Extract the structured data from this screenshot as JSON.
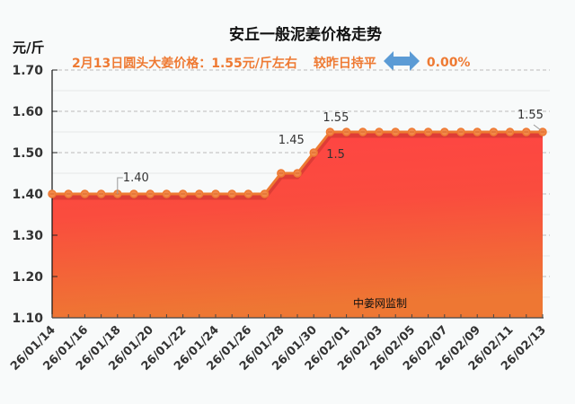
{
  "header": {
    "title": "安丘一般泥姜价格走势",
    "unit": "元/斤",
    "subtitle_price": "2月13日圆头大姜价格：1.55元/斤左右",
    "subtitle_compare": "较昨日持平",
    "subtitle_change": "0.00%",
    "arrow_icon": "left-right-arrow-icon"
  },
  "watermark": "中姜网监制",
  "colors": {
    "accent_text": "#EE7A33",
    "line": "#EE7A33",
    "area_top": "#FF4444",
    "area_bottom": "#EE7733",
    "arrow": "#5B9BD5"
  },
  "chart_data": {
    "type": "area",
    "title": "安丘一般泥姜价格走势",
    "ylabel": "元/斤",
    "xlabel": "",
    "ylim": [
      1.1,
      1.7
    ],
    "yticks": [
      "1.70",
      "1.60",
      "1.50",
      "1.40",
      "1.30",
      "1.20",
      "1.10"
    ],
    "grid": true,
    "legend": "none",
    "x": [
      "26/01/14",
      "26/01/15",
      "26/01/16",
      "26/01/17",
      "26/01/18",
      "26/01/19",
      "26/01/20",
      "26/01/21",
      "26/01/22",
      "26/01/23",
      "26/01/24",
      "26/01/25",
      "26/01/26",
      "26/01/27",
      "26/01/28",
      "26/01/29",
      "26/01/30",
      "26/01/31",
      "26/02/01",
      "26/02/02",
      "26/02/03",
      "26/02/04",
      "26/02/05",
      "26/02/06",
      "26/02/07",
      "26/02/08",
      "26/02/09",
      "26/02/10",
      "26/02/11",
      "26/02/12",
      "26/02/13"
    ],
    "xtick_labels": [
      "26/01/14",
      "26/01/16",
      "26/01/18",
      "26/01/20",
      "26/01/22",
      "26/01/24",
      "26/01/26",
      "26/01/28",
      "26/01/30",
      "26/02/01",
      "26/02/03",
      "26/02/05",
      "26/02/07",
      "26/02/09",
      "26/02/11",
      "26/02/13"
    ],
    "values": [
      1.4,
      1.4,
      1.4,
      1.4,
      1.4,
      1.4,
      1.4,
      1.4,
      1.4,
      1.4,
      1.4,
      1.4,
      1.4,
      1.4,
      1.45,
      1.45,
      1.5,
      1.55,
      1.55,
      1.55,
      1.55,
      1.55,
      1.55,
      1.55,
      1.55,
      1.55,
      1.55,
      1.55,
      1.55,
      1.55,
      1.55
    ],
    "annotations": [
      {
        "index": 4,
        "text": "1.40"
      },
      {
        "index": 14,
        "text": "1.45"
      },
      {
        "index": 16,
        "text": "1.5"
      },
      {
        "index": 17,
        "text": "1.55"
      },
      {
        "index": 30,
        "text": "1.55"
      }
    ]
  }
}
